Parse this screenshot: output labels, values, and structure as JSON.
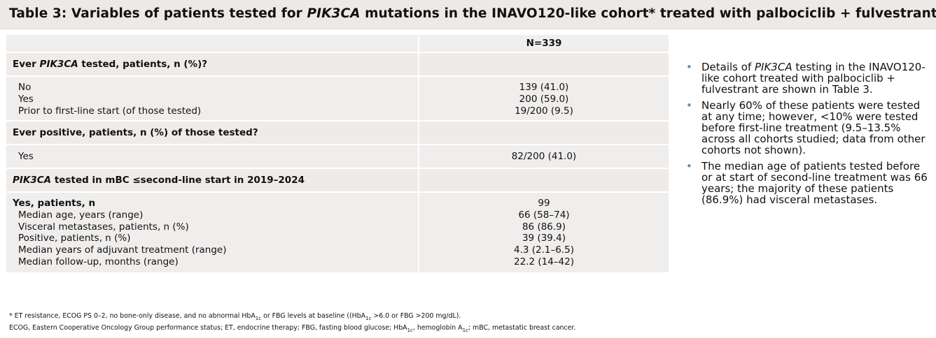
{
  "title": {
    "prefix": "Table 3: Variables of patients tested for ",
    "italic": "PIK3CA",
    "suffix": " mutations in the INAVO120-like cohort* treated with palbociclib + fulvestrant"
  },
  "table": {
    "column_header": "N=339",
    "sections": [
      {
        "label_italic": "",
        "label": "Ever PIK3CA tested, patients, n (%)?",
        "label_prefix": "Ever ",
        "label_italic_part": "PIK3CA",
        "label_suffix": " tested, patients, n (%)?",
        "rows": [
          {
            "label": "No",
            "value": "139 (41.0)"
          },
          {
            "label": "Yes",
            "value": "200 (59.0)"
          },
          {
            "label": "Prior to first-line start (of those tested)",
            "value": "19/200 (9.5)"
          }
        ]
      },
      {
        "label": "Ever positive, patients, n (%) of those tested?",
        "rows": [
          {
            "label": "Yes",
            "value": "82/200 (41.0)"
          }
        ]
      },
      {
        "label_italic_part": "PIK3CA",
        "label_suffix": " tested in mBC ≤second-line start in 2019–2024",
        "rows": [
          {
            "label": "Yes, patients, n",
            "value": "99"
          },
          {
            "label": "Median age, years (range)",
            "value": "66 (58–74)"
          },
          {
            "label": "Visceral metastases, patients, n (%)",
            "value": "86 (86.9)"
          },
          {
            "label": "Positive, patients, n (%)",
            "value": "39 (39.4)"
          },
          {
            "label": "Median years of adjuvant treatment (range)",
            "value": "4.3 (2.1–6.5)"
          },
          {
            "label": "Median follow-up, months (range)",
            "value": "22.2 (14–42)"
          }
        ]
      }
    ]
  },
  "bullets": [
    {
      "before": "Details of ",
      "italic": "PIK3CA",
      "after": " testing in the INAVO120-like cohort treated with palbociclib + fulvestrant are shown in Table 3."
    },
    {
      "text": "Nearly 60% of these patients were tested at any time; however, <10% were tested before first-line treatment (9.5–13.5% across all cohorts studied; data from other cohorts not shown)."
    },
    {
      "text": "The median age of patients tested before or at start of second-line treatment was 66 years; the majority of these patients (86.9%) had visceral metastases."
    }
  ],
  "footnotes": {
    "line1_a": "* ET resistance, ECOG PS 0–2, no bone-only disease, and no abnormal HbA",
    "line1_sub1": "1c",
    "line1_b": " or FBG levels at baseline ((HbA",
    "line1_sub2": "1c",
    "line1_c": " >6.0 or FBG >200 mg/dL).",
    "line2_a": "ECOG, Eastern Cooperative Oncology Group performance status; ET, endocrine therapy; FBG, fasting blood glucose; HbA",
    "line2_sub1": "1c",
    "line2_b": ", hemoglobin A",
    "line2_sub2": "1c",
    "line2_c": "; mBC, metastatic breast cancer."
  },
  "colors": {
    "title_bg": "#ece9e7",
    "row_bg": "#f0eeed",
    "bullet_dot": "#5d8bb0"
  }
}
